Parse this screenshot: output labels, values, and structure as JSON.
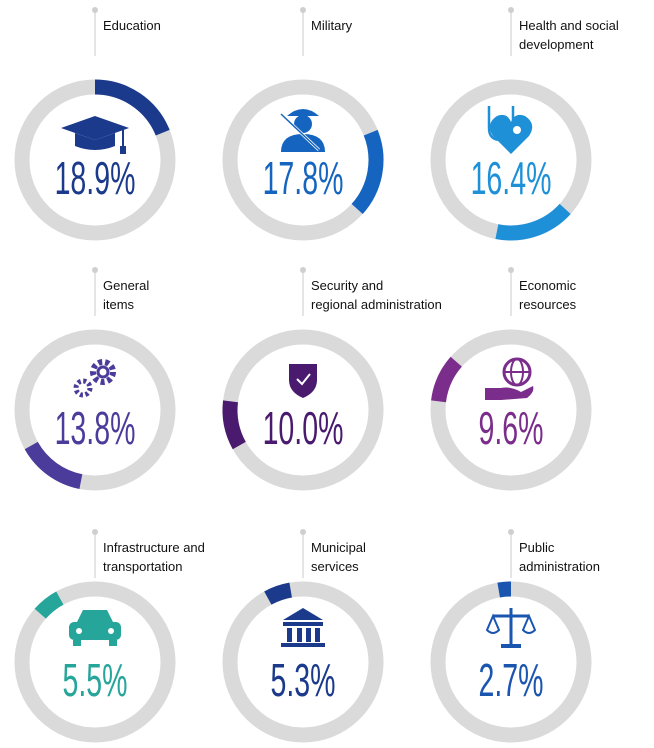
{
  "chart_data": {
    "type": "donut",
    "categories": [
      "Education",
      "Military",
      "Health and social\ndevelopment",
      "General\nitems",
      "Security and\nregional administration",
      "Economic\nresources",
      "Infrastructure and\ntransportation",
      "Municipal\nservices",
      "Public\nadministration"
    ],
    "values": [
      18.9,
      17.8,
      16.4,
      13.8,
      10.0,
      9.6,
      5.5,
      5.3,
      2.7
    ],
    "value_labels": [
      "18.9%",
      "17.8%",
      "16.4%",
      "13.8%",
      "10.0%",
      "9.6%",
      "5.5%",
      "5.3%",
      "2.7%"
    ],
    "colors": [
      "#1b3a8c",
      "#1565c0",
      "#1e90d8",
      "#4b3c9c",
      "#4a1a6e",
      "#7b2d8b",
      "#26a69a",
      "#1b3a8c",
      "#1a56b0"
    ]
  }
}
